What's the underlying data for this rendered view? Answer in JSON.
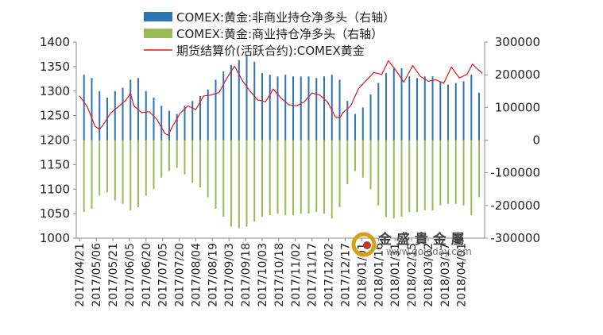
{
  "chart_data": {
    "type": "bar",
    "legend": {
      "placement": "top",
      "items": [
        {
          "label": "COMEX:黄金:非商业持仓净多头（右轴）",
          "color": "#2e75b6",
          "kind": "bar"
        },
        {
          "label": "COMEX:黄金:商业持仓净多头（右轴）",
          "color": "#9bbb59",
          "kind": "bar"
        },
        {
          "label": "期货结算价(活跃合约):COMEX黄金",
          "color": "#e31a1c",
          "kind": "line"
        }
      ]
    },
    "left_axis": {
      "ylim": [
        1000,
        1400
      ],
      "ticks": [
        "1000",
        "1050",
        "1100",
        "1150",
        "1200",
        "1250",
        "1300",
        "1350",
        "1400"
      ]
    },
    "right_axis": {
      "ylim": [
        -300000,
        300000
      ],
      "ticks": [
        "-300000",
        "-200000",
        "-100000",
        "0",
        "100000",
        "200000",
        "300000"
      ]
    },
    "x_tick_labels": [
      "2017/04/21",
      "2017/05/06",
      "2017/05/21",
      "2017/06/05",
      "2017/06/20",
      "2017/07/05",
      "2017/07/20",
      "2017/08/04",
      "2017/08/19",
      "2017/09/03",
      "2017/09/18",
      "2017/10/03",
      "2017/10/18",
      "2017/11/02",
      "2017/11/17",
      "2017/12/02",
      "2017/12/17",
      "2018/01/01",
      "2018/01/16",
      "2018/01/31",
      "2018/02/15",
      "2018/03/02",
      "2018/03/17",
      "2018/04/01"
    ],
    "x_range": [
      "2017/04/18",
      "2018/04/22"
    ],
    "positions": {
      "dates": [
        "2017/04/25",
        "2017/05/02",
        "2017/05/09",
        "2017/05/16",
        "2017/05/23",
        "2017/05/30",
        "2017/06/06",
        "2017/06/13",
        "2017/06/20",
        "2017/06/27",
        "2017/07/04",
        "2017/07/11",
        "2017/07/18",
        "2017/07/25",
        "2017/08/01",
        "2017/08/08",
        "2017/08/15",
        "2017/08/22",
        "2017/08/29",
        "2017/09/05",
        "2017/09/12",
        "2017/09/19",
        "2017/09/26",
        "2017/10/03",
        "2017/10/10",
        "2017/10/17",
        "2017/10/24",
        "2017/10/31",
        "2017/11/07",
        "2017/11/14",
        "2017/11/21",
        "2017/11/28",
        "2017/12/05",
        "2017/12/12",
        "2017/12/19",
        "2017/12/26",
        "2018/01/02",
        "2018/01/09",
        "2018/01/16",
        "2018/01/23",
        "2018/01/30",
        "2018/02/06",
        "2018/02/13",
        "2018/02/20",
        "2018/02/27",
        "2018/03/06",
        "2018/03/13",
        "2018/03/20",
        "2018/03/27",
        "2018/04/03",
        "2018/04/10",
        "2018/04/17"
      ],
      "non_commercial_net_long": [
        200000,
        190000,
        150000,
        130000,
        150000,
        160000,
        185000,
        190000,
        150000,
        130000,
        105000,
        90000,
        80000,
        105000,
        120000,
        135000,
        155000,
        185000,
        210000,
        230000,
        245000,
        260000,
        240000,
        205000,
        200000,
        195000,
        200000,
        195000,
        195000,
        195000,
        190000,
        195000,
        200000,
        185000,
        120000,
        80000,
        100000,
        140000,
        175000,
        205000,
        220000,
        220000,
        195000,
        190000,
        195000,
        195000,
        180000,
        170000,
        175000,
        180000,
        200000,
        145000
      ],
      "commercial_net_short": [
        -220000,
        -210000,
        -170000,
        -160000,
        -185000,
        -195000,
        -215000,
        -205000,
        -170000,
        -150000,
        -115000,
        -95000,
        -85000,
        -105000,
        -130000,
        -145000,
        -175000,
        -210000,
        -235000,
        -265000,
        -270000,
        -265000,
        -250000,
        -235000,
        -230000,
        -225000,
        -230000,
        -230000,
        -225000,
        -225000,
        -220000,
        -225000,
        -240000,
        -205000,
        -135000,
        -95000,
        -115000,
        -150000,
        -200000,
        -235000,
        -240000,
        -235000,
        -220000,
        -220000,
        -215000,
        -215000,
        -200000,
        -195000,
        -195000,
        -200000,
        -230000,
        -175000
      ]
    },
    "price": {
      "dates": [
        "2017/04/21",
        "2017/04/28",
        "2017/05/05",
        "2017/05/09",
        "2017/05/12",
        "2017/05/19",
        "2017/05/26",
        "2017/06/02",
        "2017/06/06",
        "2017/06/09",
        "2017/06/16",
        "2017/06/23",
        "2017/06/30",
        "2017/07/07",
        "2017/07/10",
        "2017/07/14",
        "2017/07/21",
        "2017/07/28",
        "2017/08/04",
        "2017/08/11",
        "2017/08/18",
        "2017/08/25",
        "2017/09/01",
        "2017/09/08",
        "2017/09/15",
        "2017/09/22",
        "2017/09/29",
        "2017/10/06",
        "2017/10/13",
        "2017/10/20",
        "2017/10/27",
        "2017/11/03",
        "2017/11/10",
        "2017/11/17",
        "2017/11/24",
        "2017/12/01",
        "2017/12/08",
        "2017/12/12",
        "2017/12/15",
        "2017/12/22",
        "2017/12/29",
        "2018/01/05",
        "2018/01/12",
        "2018/01/19",
        "2018/01/25",
        "2018/01/31",
        "2018/02/08",
        "2018/02/16",
        "2018/02/23",
        "2018/03/02",
        "2018/03/09",
        "2018/03/16",
        "2018/03/23",
        "2018/03/30",
        "2018/04/06",
        "2018/04/11",
        "2018/04/15",
        "2018/04/20"
      ],
      "values": [
        1290,
        1268,
        1228,
        1222,
        1230,
        1255,
        1268,
        1282,
        1296,
        1270,
        1256,
        1258,
        1242,
        1214,
        1210,
        1228,
        1255,
        1270,
        1262,
        1290,
        1292,
        1297,
        1326,
        1351,
        1322,
        1300,
        1282,
        1278,
        1304,
        1286,
        1272,
        1270,
        1278,
        1296,
        1292,
        1278,
        1248,
        1245,
        1256,
        1270,
        1305,
        1322,
        1338,
        1334,
        1362,
        1345,
        1318,
        1352,
        1330,
        1320,
        1323,
        1316,
        1349,
        1327,
        1334,
        1355,
        1346,
        1336
      ]
    }
  },
  "watermark": {
    "name": "金 盛 貴 金 屬",
    "url": "www.goldday.com"
  }
}
